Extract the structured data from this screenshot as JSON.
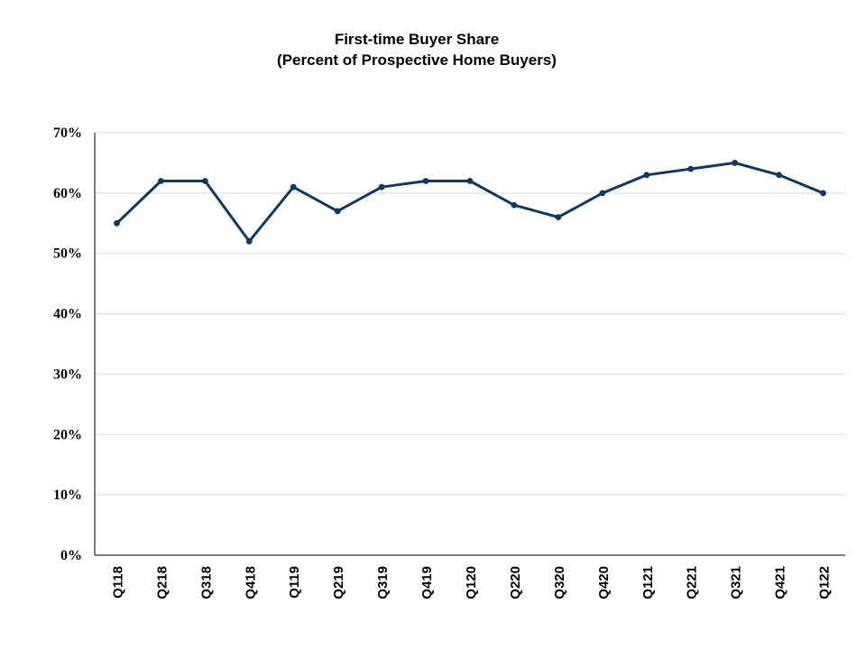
{
  "chart_data": {
    "type": "line",
    "title": "First-time Buyer Share",
    "subtitle": "(Percent of Prospective Home Buyers)",
    "xlabel": "",
    "ylabel": "",
    "categories": [
      "Q118",
      "Q218",
      "Q318",
      "Q418",
      "Q119",
      "Q219",
      "Q319",
      "Q419",
      "Q120",
      "Q220",
      "Q320",
      "Q420",
      "Q121",
      "Q221",
      "Q321",
      "Q421",
      "Q122"
    ],
    "series": [
      {
        "values": [
          55,
          62,
          62,
          52,
          61,
          57,
          61,
          62,
          62,
          58,
          56,
          60,
          63,
          64,
          65,
          63,
          60
        ]
      }
    ],
    "ylim": [
      0,
      70
    ],
    "yticks": [
      0,
      10,
      20,
      30,
      40,
      50,
      60,
      70
    ],
    "ytick_labels": [
      "0%",
      "10%",
      "20%",
      "30%",
      "40%",
      "50%",
      "60%",
      "70%"
    ],
    "grid": true,
    "legend": "none",
    "colors": {
      "line": "#0d3a62",
      "grid": "#d9d9d9",
      "axis": "#000000"
    }
  }
}
